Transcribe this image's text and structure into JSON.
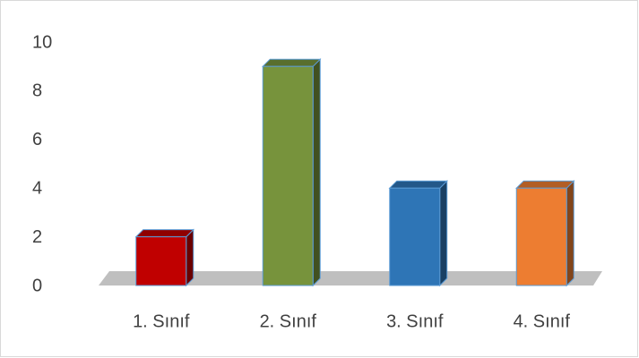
{
  "chart_data": {
    "type": "bar",
    "categories": [
      "1. Sınıf",
      "2. Sınıf",
      "3. Sınıf",
      "4. Sınıf"
    ],
    "values": [
      2,
      9,
      4,
      4
    ],
    "colors": [
      "#c00000",
      "#77933c",
      "#2e75b6",
      "#ed7d31"
    ],
    "ylim": [
      0,
      10
    ],
    "yticks": [
      0,
      2,
      4,
      6,
      8,
      10
    ],
    "grid": false
  }
}
